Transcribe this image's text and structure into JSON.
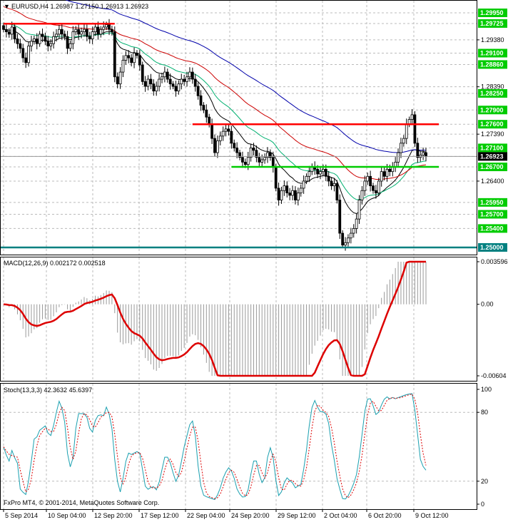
{
  "main": {
    "symbol_header": "EURUSD,H4  1.26987 1.27150 1.26913 1.26923",
    "current_price": "1.26923",
    "price_axis": [
      {
        "v": 1.2995,
        "text": "1.29950",
        "boxed": true,
        "color": "#00cc00"
      },
      {
        "v": 1.29725,
        "text": "1.29725",
        "boxed": true,
        "color": "#00cc00"
      },
      {
        "v": 1.2938,
        "text": "1.29380",
        "boxed": false
      },
      {
        "v": 1.291,
        "text": "1.29100",
        "boxed": true,
        "color": "#00cc00"
      },
      {
        "v": 1.2886,
        "text": "1.28860",
        "boxed": true,
        "color": "#00cc00"
      },
      {
        "v": 1.2839,
        "text": "1.28390",
        "boxed": false
      },
      {
        "v": 1.2825,
        "text": "1.28250",
        "boxed": true,
        "color": "#00cc00"
      },
      {
        "v": 1.279,
        "text": "1.27900",
        "boxed": true,
        "color": "#00cc00"
      },
      {
        "v": 1.276,
        "text": "1.27600",
        "boxed": true,
        "color": "#00cc00"
      },
      {
        "v": 1.2739,
        "text": "1.27390",
        "boxed": false
      },
      {
        "v": 1.271,
        "text": "1.27100",
        "boxed": true,
        "color": "#00cc00"
      },
      {
        "v": 1.2692,
        "text": "1.26923",
        "boxed": true,
        "color": "#000000"
      },
      {
        "v": 1.267,
        "text": "1.26700",
        "boxed": true,
        "color": "#00cc00"
      },
      {
        "v": 1.264,
        "text": "1.26400",
        "boxed": false
      },
      {
        "v": 1.2595,
        "text": "1.25950",
        "boxed": true,
        "color": "#00cc00"
      },
      {
        "v": 1.257,
        "text": "1.25700",
        "boxed": true,
        "color": "#00cc00"
      },
      {
        "v": 1.254,
        "text": "1.25400",
        "boxed": true,
        "color": "#00cc00"
      },
      {
        "v": 1.25,
        "text": "1.25000",
        "boxed": true,
        "color": "#008080"
      }
    ]
  },
  "macd": {
    "header": "MACD(12,26,9) 0.002172 0.002518",
    "axis": [
      {
        "v": 0.003596,
        "text": "0.003596"
      },
      {
        "v": 0,
        "text": "0.00"
      },
      {
        "v": -0.00604,
        "text": "-0.00604"
      }
    ]
  },
  "stoch": {
    "header": "Stoch(13,3,3) 42.3632 45.6397",
    "axis": [
      {
        "v": 100,
        "text": "100"
      },
      {
        "v": 80,
        "text": "80"
      },
      {
        "v": 20,
        "text": "20"
      },
      {
        "v": 0,
        "text": "0"
      }
    ]
  },
  "footer": {
    "copyright": "FxPro MT4, © 2001-2014, MetaQuotes Software Corp."
  },
  "time_axis": [
    "5 Sep 2014",
    "10 Sep 04:00",
    "12 Sep 20:00",
    "17 Sep 12:00",
    "22 Sep 04:00",
    "24 Sep 20:00",
    "29 Sep 12:00",
    "2 Oct 04:00",
    "6 Oct 20:00",
    "9 Oct 12:00"
  ],
  "colors": {
    "bull_candle": "#000000",
    "bear_candle": "#000000",
    "resistance": "#ff0000",
    "support": "#00cc00",
    "ma_fast": "#000000",
    "ma_mid": "#00b070",
    "ma_slow_red": "#cc0000",
    "ma_slow_blue": "#0000aa",
    "macd_signal": "#dd0000",
    "macd_hist": "#999999",
    "stoch_main": "#1aa0b0",
    "stoch_signal": "#dd0000"
  },
  "chart_data": {
    "type": "candlestick",
    "symbol": "EURUSD",
    "timeframe": "H4",
    "x_range": [
      "5 Sep 2014",
      "9 Oct 2014"
    ],
    "ylim": [
      1.25,
      1.2995
    ],
    "last_ohlc": {
      "open": 1.26987,
      "high": 1.2715,
      "low": 1.26913,
      "close": 1.26923
    },
    "closes": [
      1.296,
      1.2955,
      1.295,
      1.2965,
      1.294,
      1.293,
      1.292,
      1.29,
      1.289,
      1.2925,
      1.2935,
      1.294,
      1.293,
      1.295,
      1.2945,
      1.2935,
      1.2925,
      1.293,
      1.2945,
      1.295,
      1.296,
      1.295,
      1.2945,
      1.292,
      1.293,
      1.2955,
      1.296,
      1.295,
      1.2955,
      1.296,
      1.2945,
      1.294,
      1.2955,
      1.2965,
      1.295,
      1.296,
      1.2965,
      1.297,
      1.296,
      1.2955,
      1.286,
      1.2845,
      1.287,
      1.2895,
      1.2905,
      1.29,
      1.289,
      1.291,
      1.2905,
      1.2885,
      1.285,
      1.284,
      1.2855,
      1.2845,
      1.283,
      1.284,
      1.2855,
      1.286,
      1.287,
      1.2855,
      1.2845,
      1.284,
      1.283,
      1.2845,
      1.2855,
      1.285,
      1.286,
      1.287,
      1.2855,
      1.284,
      1.282,
      1.28,
      1.279,
      1.2775,
      1.276,
      1.273,
      1.27,
      1.2725,
      1.2735,
      1.2745,
      1.275,
      1.2745,
      1.272,
      1.271,
      1.27,
      1.269,
      1.268,
      1.2675,
      1.269,
      1.271,
      1.2705,
      1.269,
      1.268,
      1.2685,
      1.269,
      1.27,
      1.269,
      1.267,
      1.2625,
      1.26,
      1.262,
      1.263,
      1.2615,
      1.261,
      1.262,
      1.26,
      1.2615,
      1.2625,
      1.264,
      1.265,
      1.266,
      1.267,
      1.2665,
      1.2655,
      1.266,
      1.2665,
      1.265,
      1.264,
      1.263,
      1.2635,
      1.26,
      1.253,
      1.2505,
      1.251,
      1.252,
      1.253,
      1.254,
      1.256,
      1.26,
      1.262,
      1.264,
      1.265,
      1.263,
      1.262,
      1.2615,
      1.264,
      1.266,
      1.265,
      1.2665,
      1.266,
      1.267,
      1.268,
      1.27,
      1.272,
      1.273,
      1.276,
      1.277,
      1.278,
      1.272,
      1.269,
      1.2695,
      1.27,
      1.2692
    ],
    "levels": [
      {
        "type": "resistance",
        "price": 1.2972,
        "from": 0,
        "to": 40
      },
      {
        "type": "resistance",
        "price": 1.276,
        "from": 68,
        "to": 160
      },
      {
        "type": "support",
        "price": 1.267,
        "from": 82,
        "to": 160
      }
    ],
    "macd": {
      "params": "12,26,9",
      "main": 0.002172,
      "signal": 0.002518,
      "ylim": [
        -0.00604,
        0.003596
      ]
    },
    "stochastic": {
      "params": "13,3,3",
      "k": 42.3632,
      "d": 45.6397,
      "ylim": [
        0,
        100
      ]
    }
  }
}
